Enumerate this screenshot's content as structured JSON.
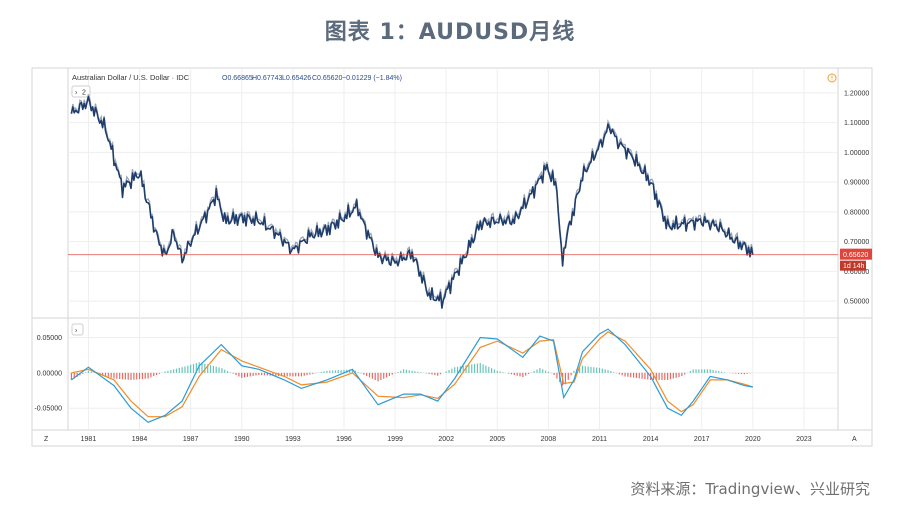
{
  "figure_title": "图表 1：AUDUSD月线",
  "source_note": "资料来源：Tradingview、兴业研究",
  "chart_data": [
    {
      "type": "line",
      "title": "Australian Dollar / U.S. Dollar · IDC",
      "ohlc_readout": {
        "open": "O0.66865",
        "high": "H0.67743",
        "low": "L0.65426",
        "close": "C0.65620",
        "change": "−0.01229 (−1.84%)"
      },
      "interval_badge": "2",
      "last_price_label": "0.65620",
      "countdown_label": "1d 14h",
      "y_ticks": [
        "1.20000",
        "1.10000",
        "1.00000",
        "0.90000",
        "0.80000",
        "0.70000",
        "0.60000",
        "0.50000"
      ],
      "ylim": [
        0.45,
        1.23
      ],
      "x_ticks": [
        "1981",
        "1984",
        "1987",
        "1990",
        "1993",
        "1996",
        "1999",
        "2002",
        "2005",
        "2008",
        "2011",
        "2014",
        "2017",
        "2020",
        "2023"
      ],
      "xlim": [
        1979.8,
        2025.0
      ],
      "x": [
        1980.0,
        1981.0,
        1982.0,
        1983.0,
        1984.0,
        1985.0,
        1985.5,
        1986.0,
        1986.5,
        1987.0,
        1988.0,
        1988.5,
        1989.0,
        1990.0,
        1991.0,
        1992.0,
        1993.0,
        1994.0,
        1995.0,
        1996.0,
        1996.8,
        1997.0,
        1998.0,
        1999.0,
        2000.0,
        2001.0,
        2001.8,
        2002.0,
        2003.0,
        2004.0,
        2005.0,
        2006.0,
        2007.0,
        2007.9,
        2008.5,
        2008.8,
        2009.0,
        2010.0,
        2011.0,
        2011.6,
        2012.0,
        2013.0,
        2014.0,
        2015.0,
        2016.0,
        2017.0,
        2018.0,
        2019.0,
        2019.6,
        2020.0
      ],
      "y": [
        1.13,
        1.17,
        1.08,
        0.88,
        0.93,
        0.72,
        0.65,
        0.73,
        0.64,
        0.7,
        0.8,
        0.86,
        0.77,
        0.78,
        0.77,
        0.73,
        0.67,
        0.72,
        0.74,
        0.78,
        0.82,
        0.78,
        0.65,
        0.63,
        0.66,
        0.52,
        0.5,
        0.53,
        0.64,
        0.76,
        0.77,
        0.77,
        0.86,
        0.95,
        0.88,
        0.62,
        0.7,
        0.92,
        1.02,
        1.09,
        1.04,
        0.98,
        0.9,
        0.75,
        0.76,
        0.77,
        0.75,
        0.7,
        0.68,
        0.6562
      ],
      "current_value": 0.6562,
      "indicator": {
        "type": "line",
        "y_ticks": [
          "0.05000",
          "0.00000",
          "-0.05000"
        ],
        "ylim": [
          -0.078,
          0.072
        ],
        "x": [
          1980.0,
          1981.0,
          1982.5,
          1983.5,
          1984.5,
          1985.5,
          1986.5,
          1987.5,
          1988.8,
          1990.0,
          1991.0,
          1992.5,
          1993.5,
          1995.0,
          1996.5,
          1998.0,
          1999.5,
          2000.5,
          2001.5,
          2002.5,
          2004.0,
          2005.0,
          2006.5,
          2007.5,
          2008.3,
          2008.9,
          2009.5,
          2010.0,
          2011.0,
          2011.5,
          2012.5,
          2014.0,
          2015.0,
          2015.8,
          2016.5,
          2017.5,
          2018.5,
          2019.5,
          2020.0
        ],
        "macd": [
          -0.01,
          0.008,
          -0.018,
          -0.05,
          -0.07,
          -0.06,
          -0.04,
          0.01,
          0.04,
          0.01,
          0.005,
          -0.01,
          -0.022,
          -0.01,
          0.005,
          -0.045,
          -0.03,
          -0.03,
          -0.04,
          -0.008,
          0.05,
          0.048,
          0.022,
          0.052,
          0.045,
          -0.035,
          -0.01,
          0.03,
          0.055,
          0.062,
          0.04,
          -0.005,
          -0.05,
          -0.06,
          -0.04,
          -0.005,
          -0.01,
          -0.018,
          -0.02
        ],
        "signal": [
          0.0,
          0.005,
          -0.01,
          -0.04,
          -0.062,
          -0.062,
          -0.048,
          -0.005,
          0.033,
          0.017,
          0.008,
          -0.005,
          -0.017,
          -0.013,
          0.0,
          -0.033,
          -0.035,
          -0.031,
          -0.036,
          -0.016,
          0.036,
          0.045,
          0.028,
          0.045,
          0.047,
          -0.015,
          -0.013,
          0.02,
          0.048,
          0.058,
          0.045,
          0.005,
          -0.04,
          -0.055,
          -0.045,
          -0.01,
          -0.01,
          -0.016,
          -0.02
        ]
      },
      "x_axis_corner_labels": [
        "Z",
        "A"
      ],
      "colors": {
        "price_line": "#1f3d6b",
        "price_shadow": "#9aa7b8",
        "last_price": "#e0443a",
        "macd": "#2c9bd6",
        "signal": "#f08c2a",
        "hist_pos": "#3fb8a8",
        "hist_neg": "#e0443a",
        "grid": "#eeeeee"
      }
    }
  ]
}
